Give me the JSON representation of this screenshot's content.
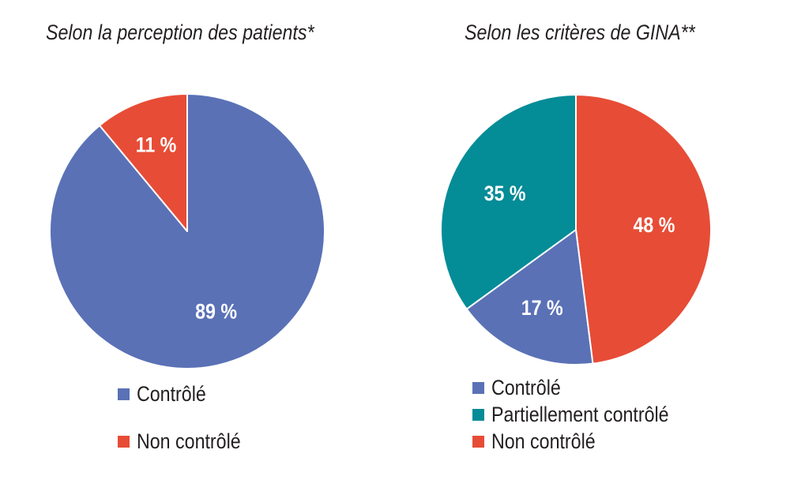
{
  "colors": {
    "controle": "#5a71b6",
    "partiellement": "#048c97",
    "non_controle": "#e74c36"
  },
  "chart_data": [
    {
      "type": "pie",
      "title": "Selon la perception des patients*",
      "categories": [
        "Contrôlé",
        "Non contrôlé"
      ],
      "values": [
        89,
        11
      ],
      "labels": [
        "89 %",
        "11 %"
      ],
      "colors": [
        "#5a71b6",
        "#e74c36"
      ],
      "legend": [
        "Contrôlé",
        "Non contrôlé"
      ],
      "legend_position": "bottom"
    },
    {
      "type": "pie",
      "title": "Selon les critères de GINA**",
      "categories": [
        "Non contrôlé",
        "Contrôlé",
        "Partiellement contrôlé"
      ],
      "values": [
        48,
        17,
        35
      ],
      "labels": [
        "48 %",
        "17 %",
        "35 %"
      ],
      "colors": [
        "#e74c36",
        "#5a71b6",
        "#048c97"
      ],
      "legend": [
        "Contrôlé",
        "Partiellement contrôlé",
        "Non contrôlé"
      ],
      "legend_colors": [
        "#5a71b6",
        "#048c97",
        "#e74c36"
      ],
      "legend_position": "bottom"
    }
  ]
}
